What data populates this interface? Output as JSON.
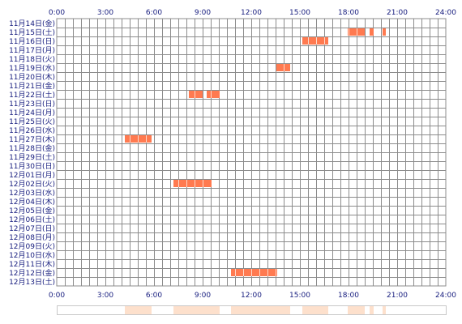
{
  "chart_data": {
    "type": "timeline",
    "x_ticks": [
      "0:00",
      "3:00",
      "6:00",
      "9:00",
      "12:00",
      "15:00",
      "18:00",
      "21:00",
      "24:00"
    ],
    "x_range_hours": [
      0,
      24
    ],
    "grid": true,
    "rows": [
      "11月14日(金)",
      "11月15日(土)",
      "11月16日(日)",
      "11月17日(月)",
      "11月18日(火)",
      "11月19日(水)",
      "11月20日(木)",
      "11月21日(金)",
      "11月22日(土)",
      "11月23日(日)",
      "11月24日(月)",
      "11月25日(火)",
      "11月26日(水)",
      "11月27日(木)",
      "11月28日(金)",
      "11月29日(土)",
      "11月30日(日)",
      "12月01日(月)",
      "12月02日(火)",
      "12月03日(水)",
      "12月04日(木)",
      "12月05日(金)",
      "12月06日(土)",
      "12月07日(日)",
      "12月08日(月)",
      "12月09日(火)",
      "12月10日(水)",
      "12月11日(木)",
      "12月12日(金)",
      "12月13日(土)"
    ],
    "bars": [
      {
        "row": 1,
        "start": 17.95,
        "end": 19.0
      },
      {
        "row": 1,
        "start": 19.3,
        "end": 19.55
      },
      {
        "row": 1,
        "start": 20.1,
        "end": 20.3
      },
      {
        "row": 2,
        "start": 15.15,
        "end": 16.75
      },
      {
        "row": 5,
        "start": 13.55,
        "end": 14.4
      },
      {
        "row": 8,
        "start": 8.15,
        "end": 9.0
      },
      {
        "row": 8,
        "start": 9.25,
        "end": 10.05
      },
      {
        "row": 13,
        "start": 4.2,
        "end": 5.85
      },
      {
        "row": 18,
        "start": 7.2,
        "end": 9.55
      },
      {
        "row": 28,
        "start": 10.75,
        "end": 13.6
      }
    ],
    "colors": {
      "bar": "#ff7a50",
      "bar_divider": "#ffd8c8",
      "grid": "#8c8c8c",
      "axis_text": "#1a2080",
      "summary_fill": "#fde0cc",
      "summary_border": "#c8c8c8"
    }
  }
}
